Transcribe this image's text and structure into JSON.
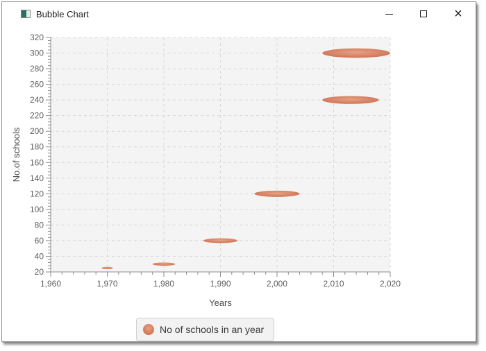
{
  "window": {
    "title": "Bubble Chart",
    "icons": [
      "app-icon",
      "minimize-icon",
      "maximize-icon",
      "close-icon"
    ]
  },
  "chart_data": {
    "type": "bubble",
    "title": "",
    "xlabel": "Years",
    "ylabel": "No.of schools",
    "xlim": [
      1960,
      2020
    ],
    "ylim": [
      20,
      320
    ],
    "x_tick_values": [
      1960,
      1970,
      1980,
      1990,
      2000,
      2010,
      2020
    ],
    "x_tick_labels": [
      "1,960",
      "1,970",
      "1,980",
      "1,990",
      "2,000",
      "2,010",
      "2,020"
    ],
    "y_tick_values": [
      20,
      40,
      60,
      80,
      100,
      120,
      140,
      160,
      180,
      200,
      220,
      240,
      260,
      280,
      300,
      320
    ],
    "y_tick_labels": [
      "20",
      "40",
      "60",
      "80",
      "100",
      "120",
      "140",
      "160",
      "180",
      "200",
      "220",
      "240",
      "260",
      "280",
      "300",
      "320"
    ],
    "grid": true,
    "minor_ticks_per_interval": 5,
    "legend_position": "bottom",
    "series": [
      {
        "name": "No of schools in an year",
        "points": [
          {
            "x": 1970,
            "y": 25,
            "r": 1
          },
          {
            "x": 1980,
            "y": 30,
            "r": 2
          },
          {
            "x": 1990,
            "y": 60,
            "r": 3
          },
          {
            "x": 2000,
            "y": 120,
            "r": 4
          },
          {
            "x": 2013,
            "y": 240,
            "r": 5
          },
          {
            "x": 2014,
            "y": 300,
            "r": 6
          }
        ],
        "color": "#d77f5e",
        "radius_units": "x-axis units (rendered as ellipse: rx = r * xScale, ry = r * yScale)"
      }
    ]
  },
  "colors": {
    "bubble_center": "#e7a184",
    "bubble_edge": "#cb6c4d",
    "plot_background": "#f4f4f4",
    "gridline": "#d8d8d8",
    "axis": "#8c8c8c",
    "tick_label": "#5f5f5f",
    "legend_background": "#f2f2f2",
    "legend_border": "#cfcfcf"
  }
}
